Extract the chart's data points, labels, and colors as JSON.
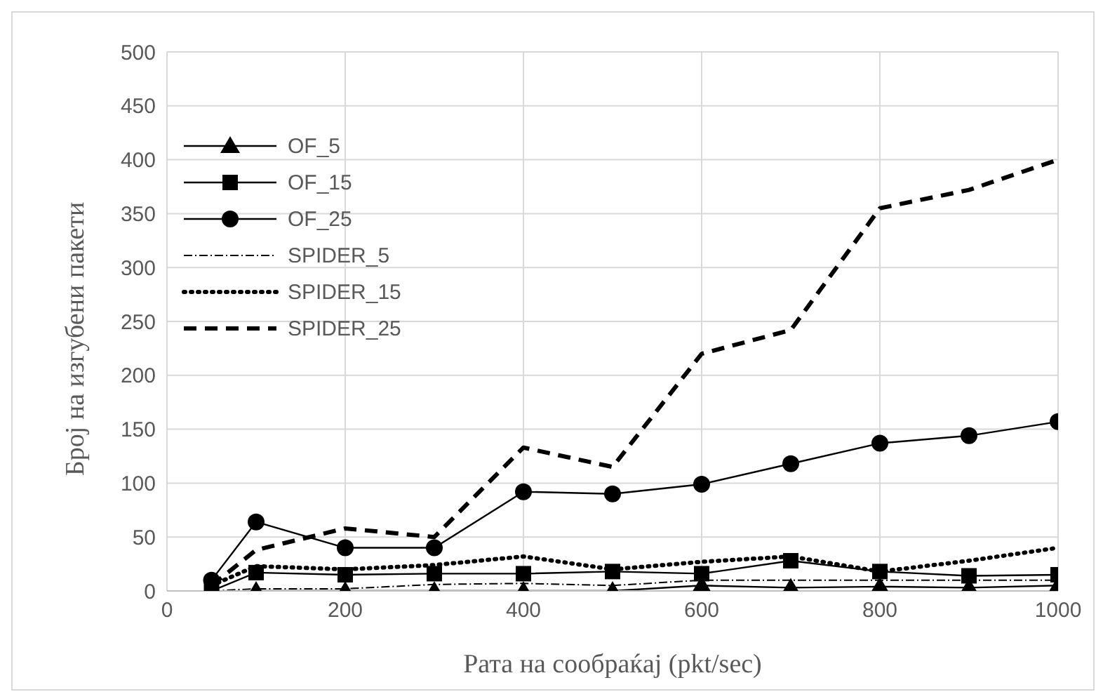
{
  "chart_data": {
    "type": "line",
    "xlabel": "Рата на сообраќај (pkt/sec)",
    "ylabel": "Број на изгубени пакети",
    "x": [
      50,
      100,
      200,
      300,
      400,
      500,
      600,
      700,
      800,
      900,
      1000
    ],
    "xlim": [
      0,
      1000
    ],
    "xticks": [
      0,
      200,
      400,
      600,
      800,
      1000
    ],
    "ylim": [
      0,
      500
    ],
    "yticks": [
      0,
      50,
      100,
      150,
      200,
      250,
      300,
      350,
      400,
      450,
      500
    ],
    "grid": true,
    "legend": "top left",
    "series": [
      {
        "name": "OF_5",
        "color": "#000000",
        "marker": "triangle",
        "line_style": "solid",
        "values": [
          null,
          0,
          0,
          0,
          0,
          0,
          5,
          3,
          4,
          3,
          5
        ]
      },
      {
        "name": "OF_15",
        "color": "#000000",
        "marker": "square",
        "line_style": "solid",
        "values": [
          0,
          17,
          15,
          16,
          16,
          18,
          16,
          28,
          18,
          14,
          15
        ]
      },
      {
        "name": "OF_25",
        "color": "#000000",
        "marker": "circle",
        "line_style": "solid",
        "values": [
          10,
          64,
          40,
          40,
          92,
          90,
          99,
          118,
          137,
          144,
          157
        ]
      },
      {
        "name": "SPIDER_5",
        "color": "#000000",
        "marker": "none",
        "line_style": "dashdot",
        "values": [
          0,
          2,
          2,
          6,
          7,
          5,
          10,
          10,
          10,
          10,
          10
        ]
      },
      {
        "name": "SPIDER_15",
        "color": "#000000",
        "marker": "none",
        "line_style": "dotted",
        "values": [
          5,
          23,
          20,
          24,
          32,
          20,
          27,
          32,
          18,
          28,
          40
        ]
      },
      {
        "name": "SPIDER_25",
        "color": "#000000",
        "marker": "none",
        "line_style": "dashed",
        "values": [
          5,
          38,
          58,
          50,
          133,
          115,
          220,
          242,
          355,
          372,
          400
        ]
      }
    ]
  }
}
